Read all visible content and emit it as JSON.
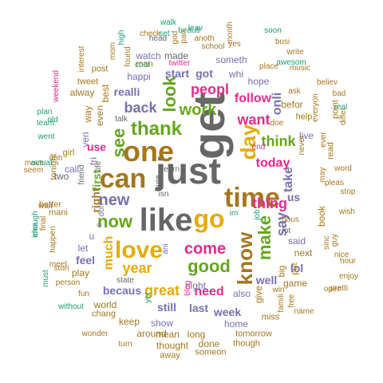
{
  "colors": {
    "c1": "#1b9e77",
    "c2": "#d95f02",
    "c3": "#7570b3",
    "c4": "#e7298a",
    "c5": "#66a61e",
    "c6": "#e6ab02",
    "c7": "#a6761d",
    "c8": "#666666"
  },
  "words": [
    "get",
    "just",
    "like",
    "one",
    "time",
    "can",
    "love",
    "go",
    "know",
    "day",
    "thank",
    "good",
    "now",
    "make",
    "see",
    "look",
    "work",
    "come",
    "want",
    "new",
    "year",
    "think",
    "peopl",
    "great",
    "back",
    "follow",
    "thing",
    "need",
    "say",
    "today",
    "much",
    "take",
    "onli",
    "use",
    "got",
    "becaus",
    "us",
    "feel",
    "right",
    "realli",
    "first",
    "week",
    "last",
    "well",
    "lol",
    "still",
    "happi",
    "start",
    "veri",
    "hope",
    "made",
    "watch",
    "someth",
    "show",
    "tri",
    "way",
    "said",
    "next",
    "also",
    "home",
    "even",
    "let",
    "two",
    "call",
    "live",
    "whi",
    "night",
    "give",
    "book",
    "u",
    "best",
    "befor",
    "alway",
    "mean",
    "long",
    "done",
    "keep",
    "world",
    "play",
    "around",
    "thought",
    "game",
    "tonight",
    "better",
    "mani",
    "big",
    "put",
    "tomorrow",
    "help",
    "girl",
    "ani",
    "miss",
    "though",
    "someon",
    "away",
    "fun",
    "name",
    "post",
    "tweet",
    "read",
    "point",
    "man",
    "pleas",
    "hour",
    "chang",
    "wonder",
    "turn",
    "ask",
    "music",
    "place",
    "sinc",
    "guy",
    "ever",
    "nice",
    "enjoy",
    "stop",
    "wish",
    "word",
    "differ",
    "bad",
    "believ",
    "everyon",
    "real",
    "anoth",
    "yes",
    "school",
    "busi",
    "awesom",
    "write",
    "soon",
    "leav",
    "walk",
    "set",
    "beauti",
    "head",
    "check",
    "god",
    "interest",
    "month",
    "part",
    "high",
    "mom",
    "found",
    "famili",
    "free",
    "state",
    "without",
    "person",
    "stori",
    "meet",
    "must",
    "happen",
    "final",
    "idea",
    "enough",
    "wait",
    "seem",
    "ohh",
    "move",
    "actual",
    "team",
    "went",
    "plan",
    "old",
    "weekend",
    "talk",
    "learn",
    "sure",
    "isn",
    "lot",
    "life",
    "friend",
    "twitter",
    "cool",
    "open",
    "pretti",
    "win",
    "blog",
    "job",
    "yet",
    "im",
    "doe",
    "hous",
    "end",
    "never",
    "may",
    "c",
    "don"
  ]
}
